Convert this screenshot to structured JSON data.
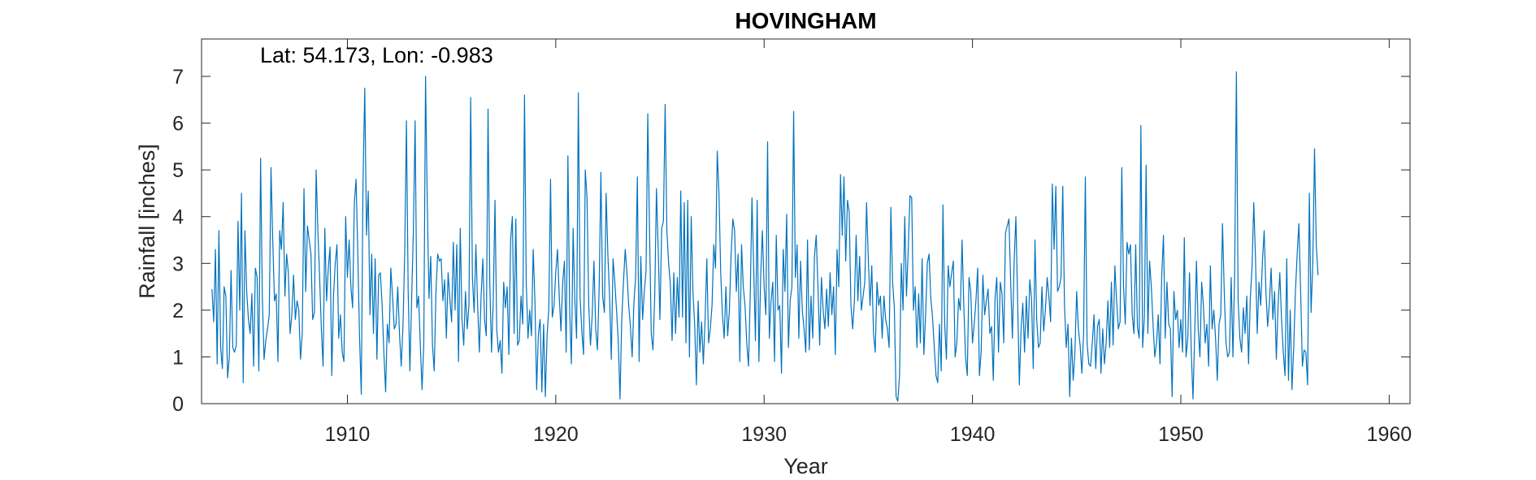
{
  "chart_data": {
    "type": "line",
    "title": "HOVINGHAM",
    "xlabel": "Year",
    "ylabel": "Rainfall [inches]",
    "annotation": "Lat: 54.173, Lon: -0.983",
    "xlim": [
      1903,
      1961
    ],
    "ylim": [
      0,
      7.8
    ],
    "xticks": [
      1910,
      1920,
      1930,
      1940,
      1950,
      1960
    ],
    "yticks": [
      0,
      1,
      2,
      3,
      4,
      5,
      6,
      7
    ],
    "grid": false,
    "box": true,
    "series": [
      {
        "color": "#0072BD",
        "x_start": 1903.5,
        "x_step": 0.0833333,
        "values": [
          2.45,
          1.75,
          3.3,
          0.85,
          3.7,
          1.2,
          0.75,
          2.5,
          2.3,
          0.55,
          1.0,
          2.85,
          1.2,
          1.1,
          1.25,
          3.9,
          2.0,
          4.5,
          0.45,
          3.7,
          2.4,
          1.8,
          1.5,
          2.35,
          0.8,
          2.9,
          2.7,
          0.7,
          5.25,
          2.3,
          0.95,
          1.35,
          1.6,
          1.9,
          5.05,
          3.5,
          2.2,
          2.35,
          0.9,
          3.7,
          3.3,
          4.3,
          2.3,
          3.2,
          2.8,
          1.5,
          1.9,
          2.75,
          1.8,
          2.2,
          2.0,
          0.95,
          1.5,
          4.6,
          2.4,
          3.8,
          3.5,
          3.2,
          1.8,
          1.95,
          5.0,
          3.7,
          2.7,
          1.6,
          0.8,
          3.75,
          2.2,
          2.9,
          3.35,
          0.6,
          2.3,
          3.0,
          3.4,
          1.4,
          1.9,
          1.1,
          0.9,
          4.0,
          2.7,
          3.5,
          2.5,
          2.05,
          4.3,
          4.8,
          3.2,
          1.4,
          0.2,
          4.75,
          6.75,
          3.6,
          4.55,
          1.9,
          3.2,
          1.5,
          3.1,
          0.95,
          2.75,
          2.8,
          2.1,
          1.1,
          0.25,
          1.7,
          1.3,
          2.9,
          2.3,
          1.6,
          1.7,
          2.5,
          1.5,
          0.8,
          1.65,
          3.2,
          6.05,
          2.4,
          0.7,
          2.25,
          3.7,
          6.05,
          2.05,
          2.3,
          1.25,
          0.3,
          1.3,
          7.0,
          4.3,
          2.25,
          3.15,
          1.25,
          0.7,
          2.4,
          3.2,
          3.05,
          3.1,
          2.2,
          2.65,
          1.4,
          2.8,
          2.25,
          1.75,
          3.45,
          2.0,
          3.4,
          0.9,
          3.75,
          1.8,
          1.25,
          2.4,
          1.6,
          2.1,
          6.55,
          2.7,
          1.95,
          3.4,
          2.1,
          1.1,
          2.3,
          3.1,
          1.8,
          1.45,
          6.3,
          2.6,
          1.1,
          2.2,
          4.35,
          1.6,
          1.1,
          1.35,
          0.65,
          2.6,
          2.05,
          2.5,
          1.05,
          3.5,
          4.0,
          1.5,
          3.95,
          1.25,
          1.35,
          2.3,
          1.7,
          6.6,
          2.6,
          1.4,
          2.0,
          1.45,
          3.3,
          2.2,
          0.3,
          1.5,
          1.8,
          0.25,
          1.7,
          0.15,
          1.45,
          2.05,
          4.8,
          1.85,
          2.1,
          2.8,
          3.3,
          2.3,
          1.55,
          2.6,
          3.05,
          1.1,
          5.3,
          2.0,
          0.85,
          3.75,
          2.2,
          1.4,
          6.65,
          2.3,
          1.55,
          1.05,
          5.0,
          4.4,
          2.1,
          1.25,
          1.9,
          3.05,
          1.6,
          1.15,
          2.5,
          4.95,
          2.3,
          1.95,
          4.5,
          3.2,
          2.3,
          0.95,
          3.1,
          2.6,
          2.0,
          1.35,
          0.1,
          1.8,
          2.6,
          3.3,
          2.8,
          2.1,
          1.65,
          1.0,
          2.15,
          2.7,
          4.85,
          0.9,
          3.15,
          1.8,
          2.4,
          2.85,
          6.2,
          3.7,
          1.5,
          1.15,
          2.3,
          4.6,
          3.3,
          1.8,
          3.75,
          3.9,
          6.4,
          3.7,
          3.0,
          2.55,
          1.35,
          2.8,
          1.5,
          2.7,
          1.85,
          4.55,
          1.85,
          4.3,
          1.3,
          4.35,
          1.0,
          4.0,
          2.4,
          1.7,
          0.4,
          2.2,
          1.1,
          1.75,
          0.85,
          1.8,
          3.1,
          1.3,
          1.6,
          2.1,
          3.4,
          2.9,
          5.4,
          4.5,
          2.8,
          1.9,
          1.4,
          2.5,
          1.45,
          2.0,
          3.2,
          3.95,
          3.7,
          2.4,
          3.2,
          0.9,
          3.4,
          2.5,
          2.1,
          1.3,
          0.8,
          2.3,
          4.4,
          2.9,
          1.35,
          4.35,
          0.9,
          2.7,
          3.7,
          2.5,
          1.9,
          5.6,
          1.4,
          2.2,
          2.6,
          0.9,
          3.6,
          2.0,
          2.1,
          0.65,
          3.3,
          2.4,
          4.05,
          1.2,
          2.2,
          2.5,
          6.25,
          2.7,
          3.4,
          1.4,
          3.05,
          2.0,
          1.6,
          1.1,
          3.5,
          1.15,
          2.3,
          1.4,
          3.15,
          3.6,
          2.5,
          1.25,
          2.7,
          2.0,
          1.6,
          2.45,
          1.65,
          2.8,
          1.9,
          2.5,
          1.05,
          3.3,
          2.5,
          4.9,
          3.6,
          4.85,
          3.05,
          4.35,
          4.1,
          2.1,
          1.6,
          2.2,
          3.6,
          2.2,
          3.15,
          2.0,
          2.3,
          2.6,
          4.3,
          3.1,
          2.1,
          2.95,
          1.5,
          1.1,
          2.6,
          2.1,
          2.3,
          1.4,
          2.3,
          1.8,
          1.6,
          1.2,
          4.2,
          2.6,
          2.05,
          0.15,
          0.05,
          0.6,
          3.0,
          2.0,
          4.0,
          2.3,
          3.3,
          4.45,
          4.4,
          2.0,
          2.5,
          1.2,
          2.35,
          1.3,
          3.1,
          1.05,
          1.9,
          3.0,
          3.2,
          2.25,
          1.85,
          1.2,
          0.6,
          0.45,
          1.7,
          0.7,
          4.25,
          1.7,
          0.95,
          2.95,
          2.5,
          2.8,
          3.05,
          1.0,
          1.3,
          2.25,
          2.0,
          3.5,
          2.1,
          1.0,
          0.6,
          2.7,
          2.4,
          1.3,
          1.7,
          2.2,
          2.9,
          0.6,
          1.1,
          2.75,
          1.9,
          2.2,
          2.45,
          1.5,
          1.65,
          0.5,
          2.25,
          2.7,
          1.1,
          2.6,
          2.35,
          1.3,
          3.65,
          3.8,
          3.95,
          2.6,
          1.4,
          3.05,
          4.0,
          2.2,
          0.4,
          1.6,
          2.15,
          1.1,
          2.3,
          1.4,
          2.65,
          2.25,
          0.75,
          3.5,
          1.8,
          1.2,
          1.3,
          2.5,
          1.55,
          2.0,
          2.7,
          2.3,
          1.75,
          4.7,
          3.3,
          4.65,
          2.4,
          2.5,
          2.7,
          4.65,
          2.1,
          1.2,
          1.7,
          0.15,
          1.4,
          0.5,
          1.1,
          2.4,
          1.6,
          1.25,
          0.65,
          1.5,
          4.85,
          1.3,
          0.85,
          0.8,
          1.3,
          1.9,
          0.75,
          1.65,
          1.8,
          0.65,
          1.6,
          0.85,
          1.3,
          2.2,
          1.2,
          2.6,
          1.25,
          2.95,
          2.2,
          1.6,
          1.75,
          5.05,
          2.5,
          1.7,
          3.45,
          3.2,
          3.4,
          1.9,
          1.5,
          3.4,
          1.65,
          1.4,
          5.95,
          1.2,
          1.85,
          5.1,
          1.5,
          3.05,
          2.5,
          1.7,
          1.0,
          1.3,
          1.9,
          0.85,
          2.75,
          3.6,
          1.4,
          2.6,
          1.7,
          1.6,
          0.15,
          2.4,
          1.8,
          2.0,
          1.2,
          1.8,
          1.1,
          3.55,
          1.0,
          1.4,
          2.8,
          1.1,
          0.1,
          1.5,
          3.05,
          1.6,
          1.0,
          2.6,
          2.1,
          1.3,
          1.7,
          0.8,
          2.95,
          1.6,
          2.0,
          1.4,
          0.5,
          1.7,
          1.9,
          3.85,
          2.4,
          1.3,
          1.0,
          1.1,
          2.7,
          1.0,
          2.8,
          7.1,
          2.2,
          1.4,
          1.1,
          2.05,
          1.5,
          2.3,
          0.85,
          2.25,
          2.9,
          4.3,
          3.1,
          1.5,
          2.6,
          2.1,
          3.05,
          3.7,
          2.4,
          1.65,
          2.15,
          2.9,
          1.8,
          2.4,
          0.95,
          2.1,
          2.8,
          1.8,
          1.1,
          0.6,
          3.1,
          0.5,
          2.0,
          0.3,
          1.2,
          2.4,
          3.2,
          3.85,
          2.4,
          0.8,
          1.15,
          1.1,
          0.4,
          4.5,
          1.95,
          3.0,
          5.45,
          3.4,
          2.75
        ]
      }
    ]
  }
}
